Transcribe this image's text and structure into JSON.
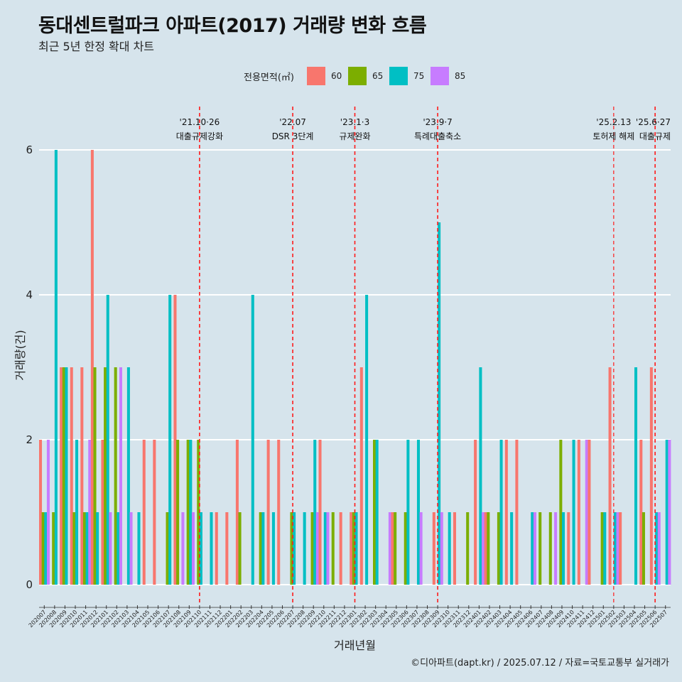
{
  "chart_data": {
    "type": "bar",
    "title": "동대센트럴파크 아파트(2017) 거래량 변화 흐름",
    "subtitle": "최근 5년 한정 확대 차트",
    "xlabel": "거래년월",
    "ylabel": "거래량(건)",
    "ylim": [
      0,
      6.4
    ],
    "yticks": [
      0,
      2,
      4,
      6
    ],
    "grid": true,
    "legend_title": "전용면적(㎡)",
    "legend_position": "top",
    "series": [
      {
        "name": "60",
        "color": "#F8766D"
      },
      {
        "name": "65",
        "color": "#7CAE00"
      },
      {
        "name": "75",
        "color": "#00BFC4"
      },
      {
        "name": "85",
        "color": "#C77CFF"
      }
    ],
    "categories": [
      "202007",
      "202008",
      "202009",
      "202010",
      "202011",
      "202012",
      "202101",
      "202102",
      "202103",
      "202104",
      "202105",
      "202106",
      "202107",
      "202108",
      "202109",
      "202110",
      "202111",
      "202112",
      "202201",
      "202202",
      "202203",
      "202204",
      "202205",
      "202206",
      "202207",
      "202208",
      "202209",
      "202210",
      "202211",
      "202212",
      "202301",
      "202302",
      "202303",
      "202304",
      "202305",
      "202306",
      "202307",
      "202308",
      "202309",
      "202310",
      "202311",
      "202312",
      "202401",
      "202402",
      "202403",
      "202404",
      "202405",
      "202406",
      "202407",
      "202408",
      "202409",
      "202410",
      "202411",
      "202412",
      "202501",
      "202502",
      "202503",
      "202504",
      "202505",
      "202506",
      "202507"
    ],
    "values": {
      "60": [
        2,
        0,
        3,
        3,
        3,
        6,
        2,
        0,
        0,
        0,
        2,
        2,
        0,
        4,
        0,
        0,
        0,
        1,
        1,
        2,
        0,
        0,
        2,
        2,
        0,
        0,
        0,
        2,
        0,
        1,
        1,
        3,
        0,
        0,
        1,
        0,
        0,
        0,
        1,
        0,
        1,
        0,
        2,
        1,
        0,
        2,
        2,
        0,
        0,
        0,
        0,
        1,
        2,
        2,
        0,
        3,
        1,
        0,
        2,
        3,
        0
      ],
      "65": [
        1,
        1,
        3,
        1,
        1,
        3,
        3,
        3,
        0,
        0,
        0,
        0,
        1,
        2,
        2,
        2,
        0,
        0,
        0,
        1,
        0,
        1,
        0,
        0,
        1,
        0,
        1,
        0,
        1,
        0,
        1,
        0,
        2,
        0,
        1,
        1,
        0,
        0,
        0,
        0,
        0,
        1,
        0,
        1,
        1,
        0,
        0,
        0,
        1,
        1,
        2,
        0,
        0,
        0,
        1,
        0,
        0,
        0,
        1,
        0,
        0
      ],
      "75": [
        1,
        6,
        3,
        2,
        1,
        1,
        4,
        1,
        3,
        1,
        0,
        0,
        4,
        0,
        2,
        1,
        1,
        0,
        0,
        0,
        4,
        1,
        1,
        0,
        1,
        1,
        2,
        1,
        0,
        0,
        1,
        4,
        2,
        0,
        0,
        2,
        2,
        0,
        5,
        1,
        0,
        0,
        3,
        0,
        2,
        1,
        0,
        1,
        0,
        0,
        1,
        2,
        0,
        0,
        1,
        1,
        0,
        3,
        0,
        1,
        2
      ],
      "85": [
        2,
        0,
        0,
        0,
        2,
        0,
        1,
        3,
        1,
        0,
        0,
        0,
        0,
        1,
        1,
        0,
        0,
        0,
        0,
        0,
        0,
        0,
        0,
        0,
        0,
        0,
        1,
        1,
        0,
        0,
        0,
        0,
        0,
        1,
        0,
        0,
        1,
        0,
        1,
        0,
        0,
        0,
        1,
        0,
        0,
        0,
        0,
        1,
        0,
        1,
        0,
        0,
        2,
        0,
        0,
        1,
        0,
        0,
        0,
        1,
        2
      ]
    },
    "events": [
      {
        "date": "'21.10·26",
        "name": "대출규제강화",
        "category": "202110"
      },
      {
        "date": "'22.07",
        "name": "DSR 3단계",
        "category": "202207"
      },
      {
        "date": "'23.1·3",
        "name": "규제완화",
        "category": "202301"
      },
      {
        "date": "'23.9·7",
        "name": "특례대출축소",
        "category": "202309"
      },
      {
        "date": "'25.2.13",
        "name": "토허제 해제",
        "category": "202502",
        "small": true
      },
      {
        "date": "'25.6·27",
        "name": "대출규제",
        "category": "202506"
      }
    ]
  },
  "caption": "©디아파트(dapt.kr) / 2025.07.12 / 자료=국토교통부 실거래가"
}
